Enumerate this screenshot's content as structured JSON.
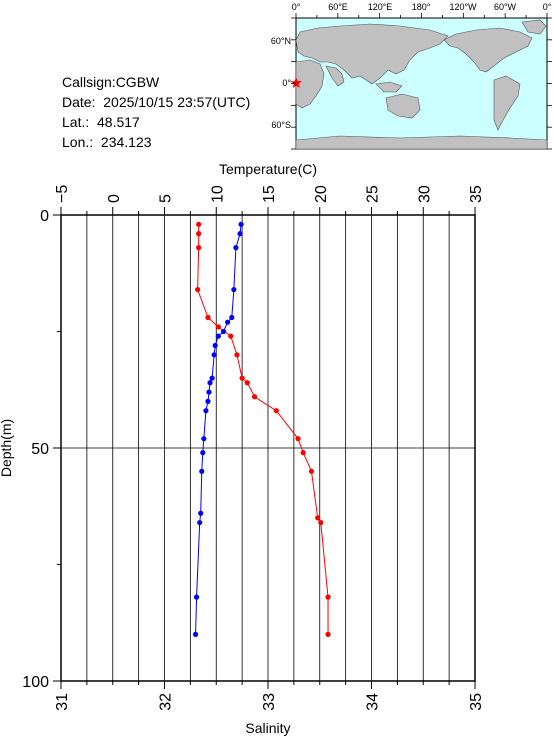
{
  "info": {
    "callsign": "Callsign:CGBW",
    "date": "Date:  2025/10/15 23:57(UTC)",
    "lat": "Lat.:  48.517",
    "lon": "Lon.:  234.123"
  },
  "map": {
    "top_labels": [
      "0°",
      "60°E",
      "120°E",
      "180°",
      "120°W",
      "60°W",
      "0°"
    ],
    "left_labels": [
      "60°N",
      "0°",
      "60°S"
    ],
    "ocean_color": "#ccffff",
    "land_color": "#c0c0c0",
    "marker_color": "#ff0000",
    "marker_icon": "star"
  },
  "chart_data": {
    "type": "line",
    "xlabel_top": "Temperature(C)",
    "xlabel_bottom": "Salinity",
    "ylabel": "Depth(m)",
    "temperature_ticks": [
      "−5",
      "0",
      "5",
      "10",
      "15",
      "20",
      "25",
      "30",
      "35"
    ],
    "salinity_ticks": [
      "31",
      "32",
      "33",
      "34",
      "35"
    ],
    "depth_ticks": [
      "0",
      "50",
      "100"
    ],
    "temperature_range": [
      -5,
      35
    ],
    "salinity_range": [
      31,
      35
    ],
    "depth_range": [
      0,
      100
    ],
    "grid": true,
    "series": [
      {
        "color": "#ff0000",
        "axis": "temperature",
        "points": [
          {
            "x": 8.3,
            "y": 2
          },
          {
            "x": 8.3,
            "y": 4
          },
          {
            "x": 8.3,
            "y": 7
          },
          {
            "x": 8.2,
            "y": 16
          },
          {
            "x": 9.2,
            "y": 22
          },
          {
            "x": 10.2,
            "y": 24
          },
          {
            "x": 11.4,
            "y": 26
          },
          {
            "x": 12.0,
            "y": 30
          },
          {
            "x": 12.5,
            "y": 35
          },
          {
            "x": 13.0,
            "y": 36
          },
          {
            "x": 13.7,
            "y": 39
          },
          {
            "x": 15.8,
            "y": 42
          },
          {
            "x": 17.9,
            "y": 48
          },
          {
            "x": 18.4,
            "y": 51
          },
          {
            "x": 19.2,
            "y": 55
          },
          {
            "x": 19.8,
            "y": 65
          },
          {
            "x": 20.1,
            "y": 66
          },
          {
            "x": 20.8,
            "y": 82
          },
          {
            "x": 20.8,
            "y": 90
          }
        ]
      },
      {
        "color": "#0000ff",
        "axis": "salinity",
        "points": [
          {
            "x": 32.74,
            "y": 2
          },
          {
            "x": 32.73,
            "y": 4
          },
          {
            "x": 32.69,
            "y": 7
          },
          {
            "x": 32.67,
            "y": 16
          },
          {
            "x": 32.65,
            "y": 22
          },
          {
            "x": 32.61,
            "y": 23
          },
          {
            "x": 32.57,
            "y": 25
          },
          {
            "x": 32.52,
            "y": 26
          },
          {
            "x": 32.49,
            "y": 28
          },
          {
            "x": 32.48,
            "y": 30
          },
          {
            "x": 32.46,
            "y": 35
          },
          {
            "x": 32.44,
            "y": 36
          },
          {
            "x": 32.43,
            "y": 38
          },
          {
            "x": 32.42,
            "y": 40
          },
          {
            "x": 32.4,
            "y": 42
          },
          {
            "x": 32.38,
            "y": 48
          },
          {
            "x": 32.37,
            "y": 51
          },
          {
            "x": 32.36,
            "y": 55
          },
          {
            "x": 32.35,
            "y": 64
          },
          {
            "x": 32.34,
            "y": 66
          },
          {
            "x": 32.31,
            "y": 82
          },
          {
            "x": 32.3,
            "y": 90
          }
        ]
      }
    ]
  }
}
